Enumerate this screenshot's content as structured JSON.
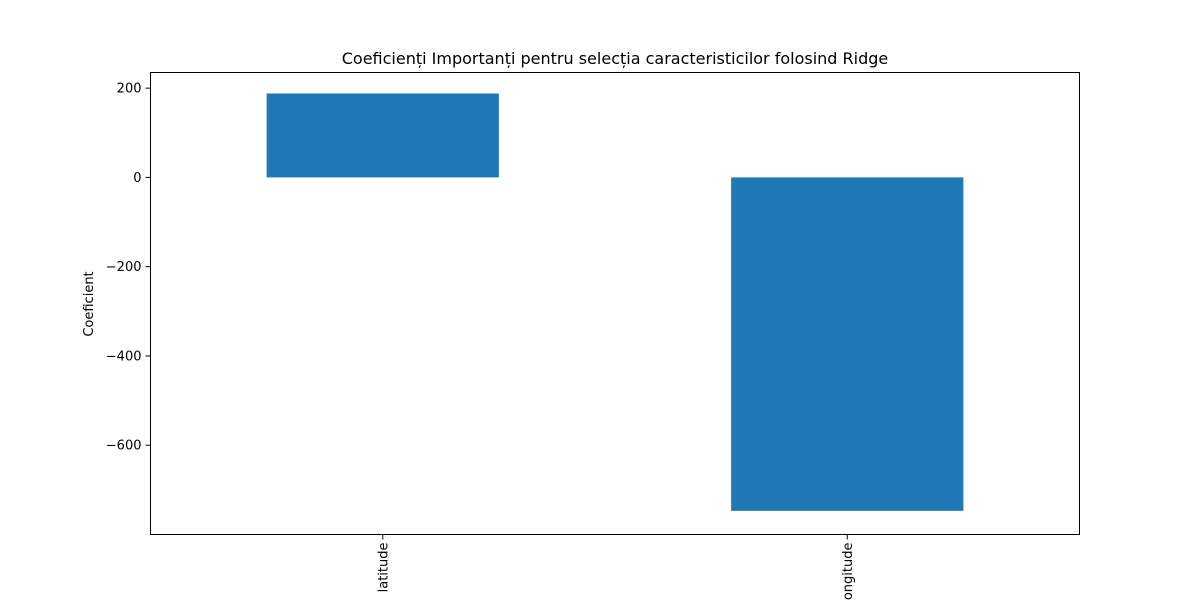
{
  "chart_data": {
    "type": "bar",
    "title": "Coeficienți Importanți pentru selecția caracteristicilor folosind Ridge",
    "xlabel": "",
    "ylabel": "Coeficient",
    "categories": [
      "latitude",
      "longitude"
    ],
    "values": [
      188,
      -747
    ],
    "ylim": [
      -800,
      235
    ],
    "yticks": [
      200,
      0,
      -200,
      -400,
      -600
    ],
    "ytick_labels": [
      "200",
      "0",
      "−200",
      "−400",
      "−600"
    ],
    "bar_color": "#1f77b4",
    "grid": false,
    "legend": "none"
  }
}
